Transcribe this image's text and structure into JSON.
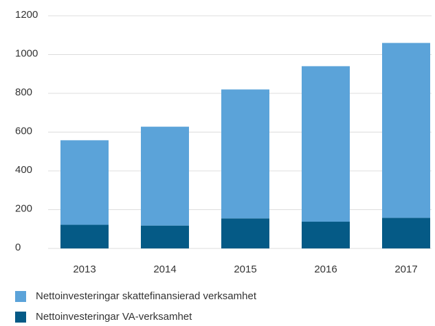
{
  "chart_data": {
    "type": "stacked_bar",
    "categories": [
      "2013",
      "2014",
      "2015",
      "2016",
      "2017"
    ],
    "series": [
      {
        "name": "Nettoinvesteringar skattefinansierad verksamhet",
        "color": "#5ba3d9",
        "values": [
          436,
          510,
          665,
          802,
          902
        ]
      },
      {
        "name": "Nettoinvesteringar VA-verksamhet",
        "color": "#055a86",
        "values": [
          122,
          118,
          155,
          138,
          158
        ]
      }
    ],
    "ylim": [
      0,
      1200
    ],
    "yticks": [
      0,
      200,
      400,
      600,
      800,
      1000,
      1200
    ],
    "grid": true
  }
}
